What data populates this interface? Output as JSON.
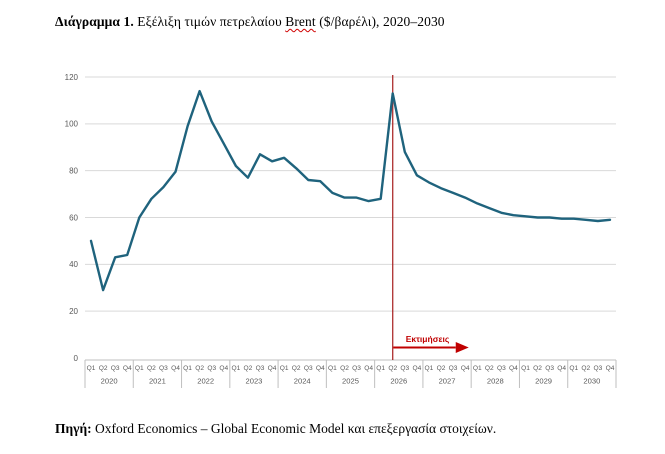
{
  "title": {
    "bold_label": "Διάγραμμα 1.",
    "pre_text": " Εξέλιξη τιμών πετρελαίου ",
    "underlined_word": "Brent",
    "post_text": " ($/βαρέλι), 2020–2030"
  },
  "source": {
    "bold_label": "Πηγή:",
    "text": " Oxford Economics – Global Economic Model και επεξεργασία στοιχείων."
  },
  "chart_data": {
    "type": "line",
    "title": "Εξέλιξη τιμών πετρελαίου Brent ($/βαρέλι), 2020–2030",
    "unit": "$/βαρέλι",
    "ylim": [
      0,
      120
    ],
    "yticks": [
      0,
      20,
      40,
      60,
      80,
      100,
      120
    ],
    "grid": true,
    "legend": "none",
    "years": [
      "2020",
      "2021",
      "2022",
      "2023",
      "2024",
      "2025",
      "2026",
      "2027",
      "2028",
      "2029",
      "2030"
    ],
    "quarters_per_year": [
      "Q1",
      "Q2",
      "Q3",
      "Q4"
    ],
    "series": [
      {
        "name": "Brent",
        "color": "#1f637d",
        "values": [
          50,
          29,
          43,
          44,
          60,
          68,
          73,
          79.5,
          99,
          114,
          101,
          91.5,
          82,
          77,
          87,
          84,
          85.5,
          81,
          76,
          75.5,
          70.5,
          68.5,
          68.5,
          67,
          68,
          113,
          88,
          78,
          75,
          72.5,
          70.5,
          68.5,
          66,
          64,
          62,
          61,
          60.5,
          60,
          60,
          59.5,
          59.5,
          59,
          58.5,
          59
        ]
      }
    ],
    "annotation": {
      "label": "Εκτιμήσεις",
      "color": "#c00000",
      "divider_color": "#a61c1c",
      "divider_quarter_index": 25
    },
    "axis_label_color": "#595959",
    "gridline_color": "#d9d9d9",
    "band_line_color": "#bfbfbf"
  }
}
